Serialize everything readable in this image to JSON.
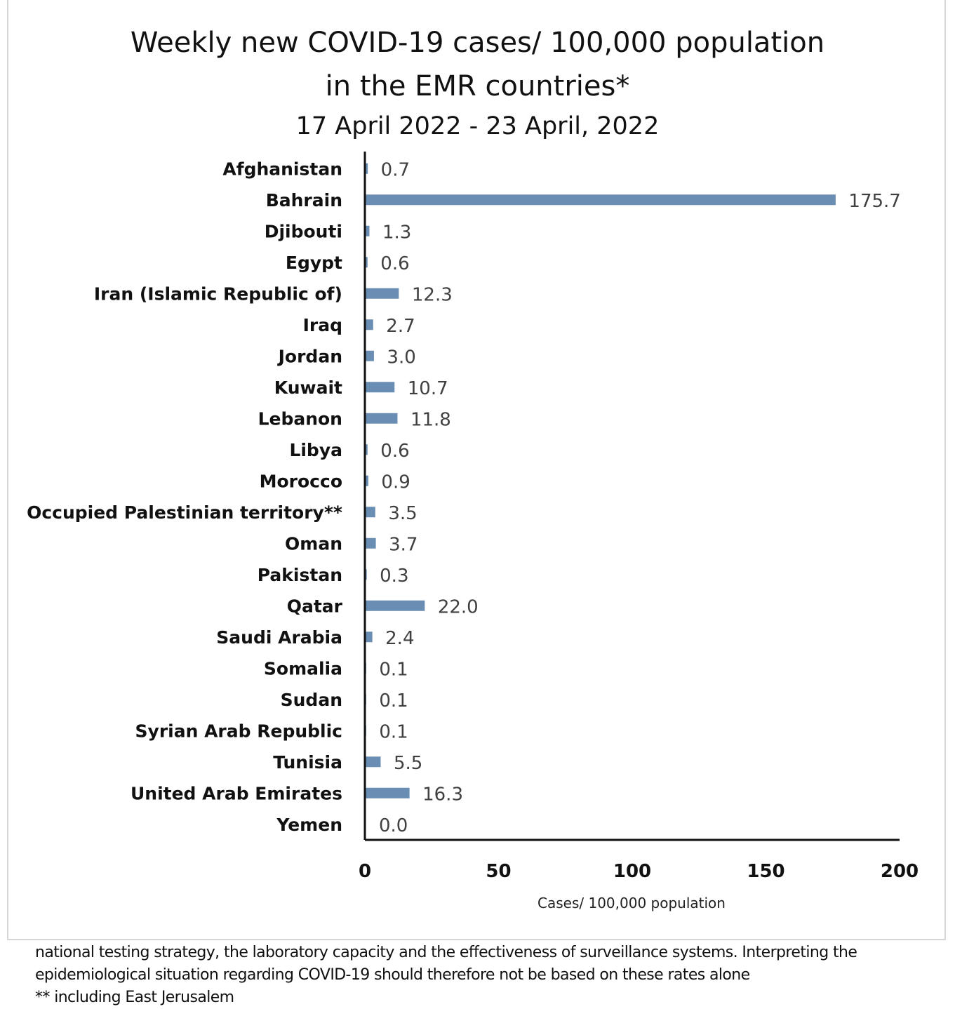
{
  "chart_data": {
    "type": "bar",
    "orientation": "horizontal",
    "title": "Weekly new COVID-19 cases/ 100,000 population",
    "title_line2": "in the EMR countries*",
    "subtitle": "17 April 2022 - 23 April, 2022",
    "xlabel": "Cases/ 100,000 population",
    "ylabel": "",
    "xlim": [
      0,
      200
    ],
    "xticks": [
      0,
      50,
      100,
      150,
      200
    ],
    "grid": false,
    "bar_color": "#6a8db3",
    "categories": [
      "Afghanistan",
      "Bahrain",
      "Djibouti",
      "Egypt",
      "Iran (Islamic Republic of)",
      "Iraq",
      "Jordan",
      "Kuwait",
      "Lebanon",
      "Libya",
      "Morocco",
      "Occupied Palestinian territory**",
      "Oman",
      "Pakistan",
      "Qatar",
      "Saudi Arabia",
      "Somalia",
      "Sudan",
      "Syrian Arab Republic",
      "Tunisia",
      "United Arab Emirates",
      "Yemen"
    ],
    "values": [
      0.7,
      175.7,
      1.3,
      0.6,
      12.3,
      2.7,
      3.0,
      10.7,
      11.8,
      0.6,
      0.9,
      3.5,
      3.7,
      0.3,
      22.0,
      2.4,
      0.1,
      0.1,
      0.1,
      5.5,
      16.3,
      0.0
    ],
    "value_labels": [
      "0.7",
      "175.7",
      "1.3",
      "0.6",
      "12.3",
      "2.7",
      "3.0",
      "10.7",
      "11.8",
      "0.6",
      "0.9",
      "3.5",
      "3.7",
      "0.3",
      "22.0",
      "2.4",
      "0.1",
      "0.1",
      "0.1",
      "5.5",
      "16.3",
      "0.0"
    ]
  },
  "footnote": {
    "lines": [
      "national testing strategy, the laboratory capacity and the effectiveness of surveillance systems. Interpreting the",
      "epidemiological situation regarding COVID-19 should therefore not be based on these rates alone",
      "** including East Jerusalem"
    ]
  }
}
